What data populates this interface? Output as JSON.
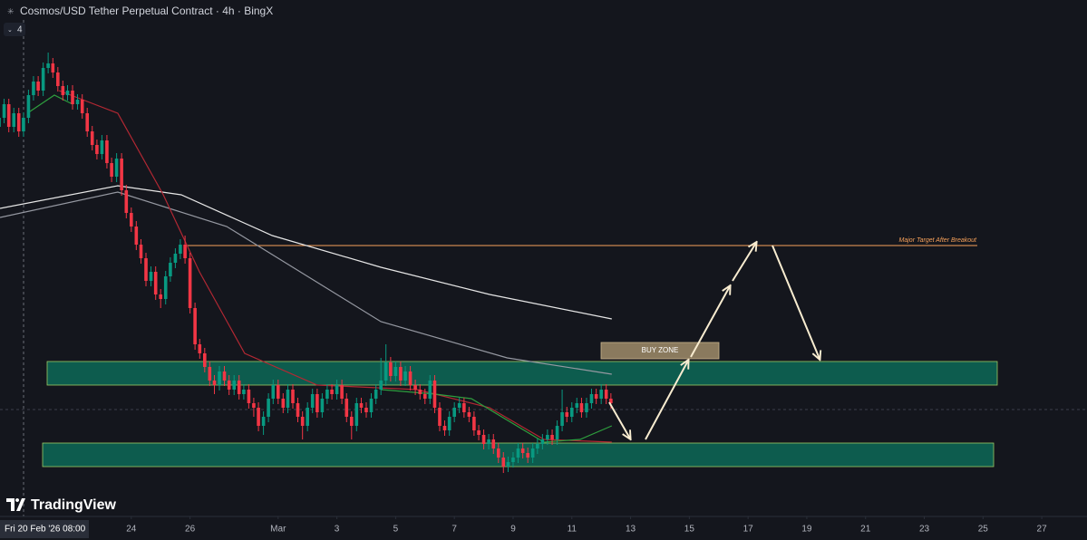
{
  "chart_data": {
    "type": "candlestick",
    "title": "Cosmos/USD Tether Perpetual Contract · 4h · BingX",
    "indicator_label": "4",
    "crosshair_label": "Fri 20 Feb '26 08:00",
    "brand": "TradingView",
    "target_label": "Major Target After Breakout",
    "buy_zone_label": "BUY ZONE",
    "xlim": [
      -0.47,
      36.54
    ],
    "ylim": [
      0,
      570
    ],
    "xticks": [
      {
        "value": 4,
        "label": "24"
      },
      {
        "value": 6,
        "label": "26"
      },
      {
        "value": 9,
        "label": "Mar"
      },
      {
        "value": 11,
        "label": "3"
      },
      {
        "value": 13,
        "label": "5"
      },
      {
        "value": 15,
        "label": "7"
      },
      {
        "value": 17,
        "label": "9"
      },
      {
        "value": 19,
        "label": "11"
      },
      {
        "value": 21,
        "label": "13"
      },
      {
        "value": 23,
        "label": "15"
      },
      {
        "value": 25,
        "label": "17"
      },
      {
        "value": 27,
        "label": "19"
      },
      {
        "value": 29,
        "label": "21"
      },
      {
        "value": 31,
        "label": "23"
      },
      {
        "value": 33,
        "label": "25"
      },
      {
        "value": 35,
        "label": "27"
      }
    ],
    "up_color": "#089981",
    "down_color": "#f23645",
    "candles": {
      "x": [
        -0.5,
        -0.33,
        -0.17,
        0,
        0.17,
        0.33,
        0.5,
        0.67,
        0.83,
        1,
        1.17,
        1.33,
        1.5,
        1.67,
        1.83,
        2,
        2.17,
        2.33,
        2.5,
        2.67,
        2.83,
        3,
        3.17,
        3.33,
        3.5,
        3.67,
        3.83,
        4,
        4.17,
        4.33,
        4.5,
        4.67,
        4.83,
        5,
        5.17,
        5.33,
        5.5,
        5.67,
        5.83,
        6,
        6.17,
        6.33,
        6.5,
        6.67,
        6.83,
        7,
        7.17,
        7.33,
        7.5,
        7.67,
        7.83,
        8,
        8.17,
        8.33,
        8.5,
        8.67,
        8.83,
        9,
        9.17,
        9.33,
        9.5,
        9.67,
        9.83,
        10,
        10.17,
        10.33,
        10.5,
        10.67,
        10.83,
        11,
        11.17,
        11.33,
        11.5,
        11.67,
        11.83,
        12,
        12.17,
        12.33,
        12.5,
        12.67,
        12.83,
        13,
        13.17,
        13.33,
        13.5,
        13.67,
        13.83,
        14,
        14.17,
        14.33,
        14.5,
        14.67,
        14.83,
        15,
        15.17,
        15.33,
        15.5,
        15.67,
        15.83,
        16,
        16.17,
        16.33,
        16.5,
        16.67,
        16.83,
        17,
        17.17,
        17.33,
        17.5,
        17.67,
        17.83,
        18,
        18.17,
        18.33,
        18.5,
        18.67,
        18.83,
        19,
        19.17,
        19.33,
        19.5,
        19.67,
        19.83,
        20,
        20.17,
        20.33
      ],
      "open": [
        430,
        440,
        455,
        430,
        445,
        425,
        440,
        465,
        480,
        470,
        495,
        500,
        490,
        475,
        465,
        470,
        455,
        460,
        445,
        425,
        410,
        400,
        415,
        390,
        375,
        395,
        360,
        335,
        320,
        300,
        285,
        260,
        270,
        245,
        240,
        265,
        280,
        290,
        300,
        285,
        230,
        190,
        180,
        165,
        150,
        145,
        160,
        150,
        140,
        150,
        135,
        140,
        125,
        120,
        100,
        110,
        130,
        145,
        130,
        120,
        140,
        125,
        110,
        100,
        120,
        135,
        115,
        130,
        140,
        135,
        145,
        130,
        110,
        100,
        125,
        120,
        115,
        130,
        140,
        150,
        170,
        155,
        165,
        150,
        160,
        145,
        140,
        135,
        130,
        150,
        120,
        100,
        95,
        110,
        120,
        125,
        115,
        110,
        95,
        90,
        80,
        85,
        75,
        65,
        55,
        60,
        65,
        75,
        70,
        65,
        75,
        80,
        85,
        90,
        85,
        100,
        115,
        110,
        120,
        125,
        115,
        125,
        135,
        130,
        140,
        130
      ],
      "high": [
        446,
        461,
        461,
        451,
        451,
        446,
        471,
        486,
        486,
        501,
        512,
        506,
        496,
        481,
        476,
        476,
        466,
        466,
        451,
        431,
        416,
        421,
        421,
        396,
        401,
        401,
        366,
        341,
        326,
        306,
        291,
        276,
        276,
        251,
        271,
        286,
        296,
        306,
        310,
        291,
        236,
        196,
        186,
        171,
        156,
        166,
        166,
        156,
        156,
        156,
        146,
        146,
        131,
        126,
        116,
        136,
        151,
        151,
        136,
        146,
        146,
        131,
        116,
        126,
        141,
        141,
        136,
        146,
        146,
        151,
        151,
        136,
        116,
        131,
        131,
        126,
        136,
        146,
        175,
        190,
        176,
        171,
        171,
        166,
        166,
        151,
        146,
        141,
        156,
        156,
        126,
        106,
        116,
        126,
        131,
        131,
        121,
        116,
        101,
        96,
        91,
        91,
        81,
        71,
        66,
        71,
        81,
        81,
        76,
        81,
        86,
        91,
        96,
        96,
        106,
        140,
        121,
        126,
        131,
        131,
        131,
        141,
        141,
        146,
        146,
        136
      ],
      "low": [
        424,
        434,
        424,
        424,
        419,
        419,
        434,
        459,
        464,
        464,
        489,
        484,
        469,
        459,
        459,
        449,
        449,
        439,
        419,
        404,
        394,
        394,
        384,
        369,
        369,
        354,
        329,
        314,
        294,
        279,
        254,
        254,
        239,
        230,
        234,
        259,
        274,
        284,
        279,
        224,
        184,
        174,
        159,
        144,
        135,
        139,
        144,
        134,
        134,
        129,
        129,
        119,
        110,
        94,
        90,
        104,
        124,
        124,
        114,
        114,
        119,
        104,
        85,
        94,
        114,
        109,
        109,
        124,
        129,
        129,
        124,
        104,
        85,
        94,
        114,
        109,
        109,
        124,
        134,
        144,
        149,
        149,
        144,
        144,
        139,
        134,
        129,
        124,
        124,
        114,
        94,
        89,
        89,
        104,
        114,
        109,
        104,
        89,
        84,
        74,
        74,
        69,
        59,
        48,
        49,
        54,
        59,
        64,
        59,
        59,
        69,
        74,
        79,
        79,
        79,
        94,
        104,
        104,
        114,
        109,
        109,
        119,
        124,
        124,
        124,
        119
      ],
      "close": [
        440,
        455,
        430,
        445,
        425,
        440,
        465,
        480,
        470,
        495,
        500,
        490,
        475,
        465,
        470,
        455,
        460,
        445,
        425,
        410,
        400,
        415,
        390,
        375,
        395,
        360,
        335,
        320,
        300,
        285,
        260,
        270,
        245,
        240,
        265,
        280,
        290,
        300,
        285,
        230,
        190,
        180,
        165,
        150,
        145,
        160,
        150,
        140,
        150,
        135,
        140,
        125,
        120,
        100,
        110,
        130,
        145,
        130,
        120,
        140,
        125,
        110,
        100,
        120,
        135,
        115,
        130,
        140,
        135,
        145,
        130,
        110,
        100,
        125,
        120,
        115,
        130,
        140,
        150,
        170,
        155,
        165,
        150,
        160,
        145,
        140,
        135,
        130,
        150,
        120,
        100,
        95,
        110,
        120,
        125,
        115,
        110,
        95,
        90,
        80,
        85,
        75,
        65,
        55,
        60,
        65,
        75,
        70,
        65,
        75,
        80,
        85,
        90,
        85,
        100,
        115,
        110,
        120,
        125,
        115,
        125,
        135,
        130,
        140,
        130,
        125
      ]
    },
    "lines": [
      {
        "color": "#e6e6e6",
        "x": [
          -0.47,
          3.54,
          5.7,
          8.8,
          12.5,
          16.2,
          20.36
        ],
        "values": [
          340,
          365,
          355,
          310,
          275,
          245,
          218
        ]
      },
      {
        "color": "#9598a1",
        "x": [
          -0.47,
          3.54,
          7.25,
          12.5,
          16.8,
          20.36
        ],
        "values": [
          330,
          358,
          320,
          215,
          175,
          157
        ]
      },
      {
        "color": "#b22833",
        "x": [
          1.54,
          3.54,
          5.09,
          6.32,
          7.86,
          10.33,
          13.73,
          16.2,
          18.05,
          20.36
        ],
        "values": [
          470,
          445,
          355,
          270,
          180,
          145,
          140,
          120,
          85,
          82
        ]
      },
      {
        "color": "#2e9e3e",
        "x": [
          0.46,
          1.38,
          2.0,
          7.0,
          12.5,
          14.35,
          15.58,
          18.05,
          19.28,
          20.36
        ],
        "values": [
          445,
          465,
          455,
          null,
          140,
          135,
          130,
          82,
          85,
          100
        ]
      }
    ]
  }
}
